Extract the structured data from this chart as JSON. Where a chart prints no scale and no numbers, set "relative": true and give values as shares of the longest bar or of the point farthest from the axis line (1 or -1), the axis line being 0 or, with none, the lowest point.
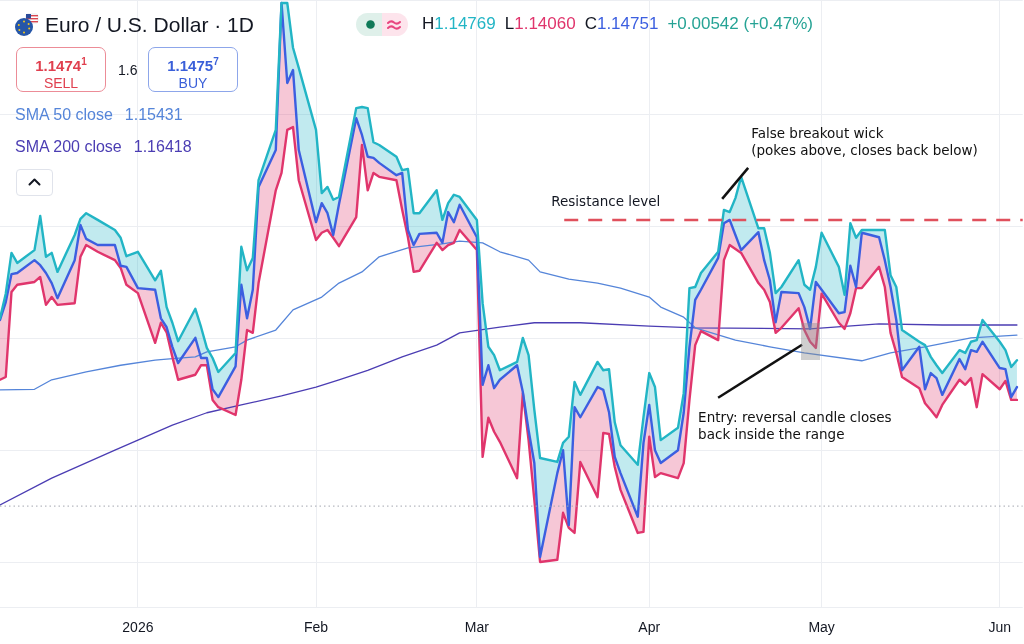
{
  "chart_data": {
    "type": "line",
    "title": "Euro / U.S. Dollar · 1D",
    "relative": true,
    "grid": true,
    "legend": "top left",
    "marker": "none",
    "xlim": [
      "2025-12-09",
      "2026-06-05"
    ],
    "xticks": [
      {
        "value": "2026-01-02",
        "label": "2026"
      },
      {
        "value": "2026-02-02",
        "label": "Feb"
      },
      {
        "value": "2026-03-02",
        "label": "Mar"
      },
      {
        "value": "2026-04-01",
        "label": "Apr"
      },
      {
        "value": "2026-05-01",
        "label": "May"
      },
      {
        "value": "2026-06-01",
        "label": "Jun"
      }
    ],
    "x": [
      "2025-12-09",
      "2025-12-10",
      "2025-12-11",
      "2025-12-12",
      "2025-12-15",
      "2025-12-16",
      "2025-12-17",
      "2025-12-18",
      "2025-12-19",
      "2025-12-22",
      "2025-12-23",
      "2025-12-24",
      "2025-12-26",
      "2025-12-29",
      "2025-12-30",
      "2025-12-31",
      "2026-01-02",
      "2026-01-05",
      "2026-01-06",
      "2026-01-07",
      "2026-01-08",
      "2026-01-09",
      "2026-01-12",
      "2026-01-13",
      "2026-01-14",
      "2026-01-15",
      "2026-01-16",
      "2026-01-19",
      "2026-01-20",
      "2026-01-21",
      "2026-01-22",
      "2026-01-23",
      "2026-01-26",
      "2026-01-27",
      "2026-01-28",
      "2026-01-29",
      "2026-01-30",
      "2026-02-02",
      "2026-02-03",
      "2026-02-04",
      "2026-02-05",
      "2026-02-06",
      "2026-02-09",
      "2026-02-10",
      "2026-02-11",
      "2026-02-12",
      "2026-02-13",
      "2026-02-16",
      "2026-02-17",
      "2026-02-18",
      "2026-02-19",
      "2026-02-20",
      "2026-02-23",
      "2026-02-24",
      "2026-02-25",
      "2026-02-26",
      "2026-02-27",
      "2026-03-02",
      "2026-03-03",
      "2026-03-04",
      "2026-03-05",
      "2026-03-06",
      "2026-03-09",
      "2026-03-10",
      "2026-03-11",
      "2026-03-12",
      "2026-03-13",
      "2026-03-16",
      "2026-03-17",
      "2026-03-18",
      "2026-03-19",
      "2026-03-20",
      "2026-03-23",
      "2026-03-24",
      "2026-03-25",
      "2026-03-26",
      "2026-03-27",
      "2026-03-30",
      "2026-03-31",
      "2026-04-01",
      "2026-04-02",
      "2026-04-03",
      "2026-04-06",
      "2026-04-07",
      "2026-04-08",
      "2026-04-09",
      "2026-04-10",
      "2026-04-13",
      "2026-04-14",
      "2026-04-15",
      "2026-04-16",
      "2026-04-17",
      "2026-04-20",
      "2026-04-21",
      "2026-04-22",
      "2026-04-23",
      "2026-04-24",
      "2026-04-27",
      "2026-04-28",
      "2026-04-29",
      "2026-04-30",
      "2026-05-01",
      "2026-05-04",
      "2026-05-05",
      "2026-05-06",
      "2026-05-07",
      "2026-05-08",
      "2026-05-11",
      "2026-05-12",
      "2026-05-13",
      "2026-05-14",
      "2026-05-15",
      "2026-05-18",
      "2026-05-19",
      "2026-05-20",
      "2026-05-21",
      "2026-05-22",
      "2026-05-25",
      "2026-05-26",
      "2026-05-27",
      "2026-05-28",
      "2026-05-29",
      "2026-06-01",
      "2026-06-02",
      "2026-06-03",
      "2026-06-04"
    ],
    "series": [
      {
        "color": "#22b5c5",
        "values": [
          0.436,
          0.48,
          0.553,
          0.535,
          0.558,
          0.619,
          0.546,
          0.553,
          0.519,
          0.585,
          0.614,
          0.624,
          0.612,
          0.594,
          0.58,
          0.547,
          0.555,
          0.504,
          0.521,
          0.456,
          0.428,
          0.395,
          0.453,
          0.42,
          0.383,
          0.365,
          0.34,
          0.374,
          0.564,
          0.522,
          0.544,
          0.683,
          0.773,
          1,
          1,
          0.92,
          0.884,
          0.773,
          0.66,
          0.671,
          0.648,
          0.653,
          0.812,
          0.814,
          0.812,
          0.751,
          0.746,
          0.725,
          0.701,
          0.703,
          0.624,
          0.624,
          0.665,
          0.612,
          0.642,
          0.657,
          0.653,
          0.612,
          0.463,
          0.385,
          0.37,
          0.343,
          0.358,
          0.401,
          0.37,
          0.272,
          0.186,
          0.179,
          0.213,
          0.224,
          0.322,
          0.299,
          0.358,
          0.343,
          0.345,
          0.25,
          0.209,
          0.174,
          0.259,
          0.338,
          0.313,
          0.218,
          0.24,
          0.302,
          0.49,
          0.492,
          0.517,
          0.555,
          0.63,
          0.626,
          0.651,
          0.689,
          0.597,
          0.597,
          0.553,
          0.481,
          0.492,
          0.54,
          0.496,
          0.487,
          0.528,
          0.589,
          0.528,
          0.478,
          0.606,
          0.58,
          0.594,
          0.594,
          0.594,
          0.513,
          0.492,
          0.415,
          0.394,
          0.388,
          0.367,
          0.352,
          0.338,
          0.379,
          0.374,
          0.394,
          0.397,
          0.433,
          0.394,
          0.379,
          0.349,
          0.361
        ],
        "upper": [
          0.436,
          0.48,
          0.553,
          0.535,
          0.558,
          0.619,
          0.546,
          0.553,
          0.519,
          0.585,
          0.614,
          0.624,
          0.612,
          0.594,
          0.58,
          0.547,
          0.555,
          0.504,
          0.521,
          0.456,
          0.428,
          0.395,
          0.453,
          0.42,
          0.383,
          0.365,
          0.34,
          0.374,
          0.564,
          0.522,
          0.544,
          0.683,
          0.773,
          1,
          1,
          0.92,
          0.884,
          0.773,
          0.66,
          0.671,
          0.648,
          0.653,
          0.812,
          0.814,
          0.812,
          0.751,
          0.746,
          0.725,
          0.701,
          0.703,
          0.624,
          0.624,
          0.665,
          0.612,
          0.642,
          0.657,
          0.653,
          0.612,
          0.463,
          0.385,
          0.37,
          0.343,
          0.358,
          0.401,
          0.37,
          0.272,
          0.186,
          0.179,
          0.213,
          0.224,
          0.322,
          0.299,
          0.358,
          0.343,
          0.345,
          0.25,
          0.209,
          0.174,
          0.259,
          0.338,
          0.313,
          0.218,
          0.24,
          0.302,
          0.49,
          0.492,
          0.517,
          0.555,
          0.63,
          0.626,
          0.651,
          0.689,
          0.597,
          0.597,
          0.553,
          0.481,
          0.492,
          0.54,
          0.496,
          0.487,
          0.528,
          0.589,
          0.528,
          0.478,
          0.606,
          0.58,
          0.594,
          0.594,
          0.594,
          0.513,
          0.492,
          0.415,
          0.394,
          0.388,
          0.367,
          0.352,
          0.338,
          0.379,
          0.374,
          0.394,
          0.397,
          0.433,
          0.394,
          0.379,
          0.349,
          0.361
        ],
        "lower": [
          0.433,
          0.465,
          0.515,
          0.517,
          0.54,
          0.531,
          0.517,
          0.499,
          0.472,
          0.54,
          0.603,
          0.578,
          0.567,
          0.567,
          0.53,
          0.528,
          0.49,
          0.487,
          0.436,
          0.42,
          0.385,
          0.356,
          0.401,
          0.365,
          0.365,
          0.309,
          0.295,
          0.35,
          0.496,
          0.436,
          0.487,
          0.671,
          0.737,
          1,
          0.857,
          0.88,
          0.737,
          0.608,
          0.642,
          0.624,
          0.585,
          0.64,
          0.794,
          0.764,
          0.725,
          0.723,
          0.714,
          0.692,
          0.696,
          0.594,
          0.567,
          0.587,
          0.589,
          0.571,
          0.626,
          0.608,
          0.639,
          0.581,
          0.317,
          0.352,
          0.311,
          0.326,
          0.352,
          0.304,
          0.236,
          0.177,
          0.009,
          0.159,
          0.2,
          0.066,
          0.277,
          0.259,
          0.313,
          0.308,
          0.268,
          0.188,
          0.159,
          0.081,
          0.213,
          0.281,
          0.2,
          0.177,
          0.2,
          0.267,
          0.385,
          0.469,
          0.487,
          0.544,
          0.606,
          0.612,
          0.585,
          0.558,
          0.59,
          0.54,
          0.504,
          0.429,
          0.483,
          0.481,
          0.456,
          0.417,
          0.501,
          0.487,
          0.445,
          0.447,
          0.53,
          0.492,
          0.589,
          0.581,
          0.54,
          0.492,
          0.433,
          0.343,
          0.385,
          0.309,
          0.338,
          0.329,
          0.299,
          0.363,
          0.345,
          0.379,
          0.376,
          0.394,
          0.347,
          0.345,
          0.295,
          0.313
        ]
      },
      {
        "color": "#3c5fe0",
        "values": [
          0.433,
          0.465,
          0.515,
          0.517,
          0.54,
          0.531,
          0.517,
          0.499,
          0.472,
          0.54,
          0.603,
          0.578,
          0.567,
          0.567,
          0.53,
          0.528,
          0.49,
          0.487,
          0.436,
          0.42,
          0.385,
          0.356,
          0.401,
          0.365,
          0.365,
          0.309,
          0.295,
          0.35,
          0.496,
          0.436,
          0.487,
          0.671,
          0.737,
          1,
          0.857,
          0.88,
          0.737,
          0.608,
          0.642,
          0.624,
          0.585,
          0.64,
          0.794,
          0.764,
          0.725,
          0.723,
          0.714,
          0.692,
          0.696,
          0.594,
          0.567,
          0.587,
          0.589,
          0.571,
          0.626,
          0.608,
          0.639,
          0.581,
          0.317,
          0.352,
          0.311,
          0.326,
          0.352,
          0.304,
          0.236,
          0.177,
          0.009,
          0.159,
          0.2,
          0.066,
          0.277,
          0.259,
          0.313,
          0.308,
          0.268,
          0.188,
          0.159,
          0.081,
          0.213,
          0.281,
          0.2,
          0.177,
          0.2,
          0.267,
          0.385,
          0.469,
          0.487,
          0.544,
          0.606,
          0.612,
          0.585,
          0.558,
          0.59,
          0.54,
          0.504,
          0.429,
          0.483,
          0.481,
          0.456,
          0.417,
          0.501,
          0.487,
          0.445,
          0.447,
          0.53,
          0.492,
          0.589,
          0.581,
          0.54,
          0.492,
          0.433,
          0.343,
          0.385,
          0.309,
          0.338,
          0.329,
          0.299,
          0.363,
          0.345,
          0.379,
          0.376,
          0.394,
          0.347,
          0.345,
          0.295,
          0.313
        ]
      },
      {
        "color": "#e0356c",
        "values": [
          0.326,
          0.331,
          0.483,
          0.496,
          0.501,
          0.51,
          0.46,
          0.474,
          0.46,
          0.463,
          0.546,
          0.567,
          0.555,
          0.54,
          0.526,
          0.496,
          0.481,
          0.392,
          0.428,
          0.411,
          0.367,
          0.326,
          0.335,
          0.352,
          0.352,
          0.29,
          0.277,
          0.263,
          0.326,
          0.415,
          0.41,
          0.499,
          0.665,
          0.696,
          0.773,
          0.778,
          0.683,
          0.576,
          0.589,
          0.594,
          0.58,
          0.565,
          0.617,
          0.746,
          0.665,
          0.696,
          0.689,
          0.683,
          0.63,
          0.581,
          0.519,
          0.521,
          0.571,
          0.558,
          0.567,
          0.571,
          0.594,
          0.558,
          0.188,
          0.258,
          0.233,
          0.215,
          0.15,
          0.302,
          0.218,
          0.111,
          0,
          0.004,
          0.088,
          0.061,
          0.052,
          0.179,
          0.116,
          0.231,
          0.229,
          0.17,
          0.129,
          0.052,
          0.054,
          0.224,
          0.152,
          0.159,
          0.15,
          0.177,
          0.29,
          0.388,
          0.413,
          0.397,
          0.54,
          0.567,
          0.56,
          0.553,
          0.499,
          0.487,
          0.465,
          0.41,
          0.419,
          0.454,
          0.415,
          0.394,
          0.383,
          0.48,
          0.428,
          0.417,
          0.445,
          0.49,
          0.49,
          0.528,
          0.492,
          0.41,
          0.374,
          0.331,
          0.311,
          0.284,
          0.272,
          0.259,
          0.281,
          0.326,
          0.317,
          0.329,
          0.277,
          0.336,
          0.309,
          0.324,
          0.29,
          0.29
        ],
        "lower": [
          0.326,
          0.331,
          0.483,
          0.496,
          0.501,
          0.51,
          0.46,
          0.474,
          0.46,
          0.463,
          0.546,
          0.567,
          0.555,
          0.54,
          0.526,
          0.496,
          0.481,
          0.392,
          0.428,
          0.411,
          0.367,
          0.326,
          0.335,
          0.352,
          0.352,
          0.29,
          0.277,
          0.263,
          0.326,
          0.415,
          0.41,
          0.499,
          0.665,
          0.696,
          0.773,
          0.778,
          0.683,
          0.576,
          0.589,
          0.594,
          0.58,
          0.565,
          0.617,
          0.746,
          0.665,
          0.696,
          0.689,
          0.683,
          0.63,
          0.581,
          0.519,
          0.521,
          0.571,
          0.558,
          0.567,
          0.571,
          0.594,
          0.558,
          0.188,
          0.258,
          0.233,
          0.215,
          0.15,
          0.302,
          0.218,
          0.111,
          0,
          0.004,
          0.088,
          0.061,
          0.052,
          0.179,
          0.116,
          0.231,
          0.229,
          0.17,
          0.129,
          0.052,
          0.054,
          0.224,
          0.152,
          0.159,
          0.15,
          0.177,
          0.29,
          0.388,
          0.413,
          0.397,
          0.54,
          0.567,
          0.56,
          0.553,
          0.499,
          0.487,
          0.465,
          0.41,
          0.419,
          0.454,
          0.415,
          0.394,
          0.383,
          0.48,
          0.428,
          0.417,
          0.445,
          0.49,
          0.49,
          0.528,
          0.492,
          0.41,
          0.374,
          0.331,
          0.311,
          0.284,
          0.272,
          0.259,
          0.281,
          0.326,
          0.317,
          0.329,
          0.277,
          0.336,
          0.309,
          0.324,
          0.29,
          0.29
        ],
        "upper": [
          0.433,
          0.465,
          0.515,
          0.517,
          0.54,
          0.531,
          0.517,
          0.499,
          0.472,
          0.54,
          0.603,
          0.578,
          0.567,
          0.567,
          0.53,
          0.528,
          0.49,
          0.487,
          0.436,
          0.42,
          0.385,
          0.356,
          0.401,
          0.365,
          0.365,
          0.309,
          0.295,
          0.35,
          0.496,
          0.436,
          0.487,
          0.671,
          0.737,
          1,
          0.857,
          0.88,
          0.737,
          0.608,
          0.642,
          0.624,
          0.585,
          0.64,
          0.794,
          0.764,
          0.725,
          0.723,
          0.714,
          0.692,
          0.696,
          0.594,
          0.567,
          0.587,
          0.589,
          0.571,
          0.626,
          0.608,
          0.639,
          0.581,
          0.317,
          0.352,
          0.311,
          0.326,
          0.352,
          0.304,
          0.236,
          0.177,
          0.009,
          0.159,
          0.2,
          0.066,
          0.277,
          0.259,
          0.313,
          0.308,
          0.268,
          0.188,
          0.159,
          0.081,
          0.213,
          0.281,
          0.2,
          0.177,
          0.2,
          0.267,
          0.385,
          0.469,
          0.487,
          0.544,
          0.606,
          0.612,
          0.585,
          0.558,
          0.59,
          0.54,
          0.504,
          0.429,
          0.483,
          0.481,
          0.456,
          0.417,
          0.501,
          0.487,
          0.445,
          0.447,
          0.53,
          0.492,
          0.589,
          0.581,
          0.54,
          0.492,
          0.433,
          0.343,
          0.385,
          0.309,
          0.338,
          0.329,
          0.299,
          0.363,
          0.345,
          0.379,
          0.376,
          0.394,
          0.347,
          0.345,
          0.295,
          0.313
        ]
      },
      {
        "name": "SMA 50 close",
        "color": "#5585d9",
        "x": [
          "2025-12-09",
          "2025-12-15",
          "2025-12-18",
          "2025-12-24",
          "2025-12-30",
          "2026-01-05",
          "2026-01-07",
          "2026-01-12",
          "2026-01-14",
          "2026-01-19",
          "2026-01-21",
          "2026-01-26",
          "2026-01-29",
          "2026-02-03",
          "2026-02-06",
          "2026-02-10",
          "2026-02-13",
          "2026-02-18",
          "2026-02-24",
          "2026-02-27",
          "2026-03-03",
          "2026-03-06",
          "2026-03-11",
          "2026-03-13",
          "2026-03-18",
          "2026-03-23",
          "2026-03-27",
          "2026-04-01",
          "2026-04-03",
          "2026-04-07",
          "2026-04-09",
          "2026-04-16",
          "2026-04-22",
          "2026-04-28",
          "2026-05-08",
          "2026-05-13",
          "2026-05-19",
          "2026-05-27",
          "2026-06-04"
        ],
        "values": [
          0.308,
          0.309,
          0.326,
          0.34,
          0.352,
          0.361,
          0.363,
          0.367,
          0.376,
          0.385,
          0.397,
          0.415,
          0.451,
          0.474,
          0.499,
          0.519,
          0.546,
          0.562,
          0.569,
          0.574,
          0.571,
          0.555,
          0.54,
          0.519,
          0.506,
          0.499,
          0.49,
          0.474,
          0.456,
          0.438,
          0.419,
          0.397,
          0.385,
          0.374,
          0.36,
          0.374,
          0.385,
          0.401,
          0.406
        ]
      },
      {
        "name": "SMA 200 close",
        "color": "#4b3db3",
        "x": [
          "2025-12-09",
          "2025-12-18",
          "2025-12-29",
          "2026-01-02",
          "2026-01-08",
          "2026-01-14",
          "2026-01-20",
          "2026-01-27",
          "2026-02-02",
          "2026-02-06",
          "2026-02-11",
          "2026-02-17",
          "2026-02-23",
          "2026-02-27",
          "2026-03-06",
          "2026-03-12",
          "2026-03-20",
          "2026-04-01",
          "2026-04-09",
          "2026-04-29",
          "2026-05-11",
          "2026-05-22",
          "2026-06-04"
        ],
        "values": [
          0.102,
          0.15,
          0.2,
          0.218,
          0.245,
          0.267,
          0.281,
          0.297,
          0.313,
          0.326,
          0.343,
          0.367,
          0.388,
          0.41,
          0.42,
          0.428,
          0.428,
          0.422,
          0.419,
          0.417,
          0.426,
          0.424,
          0.424
        ]
      }
    ],
    "ref_lines": [
      {
        "axis": "y",
        "value": 0.612,
        "label": "Resistance level",
        "color": "#e0505c",
        "line_style": "dashed"
      },
      {
        "axis": "y",
        "value": 0.1,
        "color": "#a3a7b0",
        "line_style": "dotted"
      }
    ],
    "annotations": [
      "H1.14769",
      "L1.14060",
      "C1.14751",
      "+0.00542 (+0.47%)",
      "1.1474$^{1}$",
      "SELL",
      "1.6",
      "1.1475$^{7}$",
      "BUY",
      "1.15431",
      "1.16418",
      {
        "text": "False breakout wick\n(pokes above, closes back below)",
        "x": "2026-04-17",
        "y": 0.689
      },
      {
        "text": "Entry: reversal candle closes\nback inside the range",
        "x": "2026-04-29",
        "y": 0.394
      }
    ]
  }
}
